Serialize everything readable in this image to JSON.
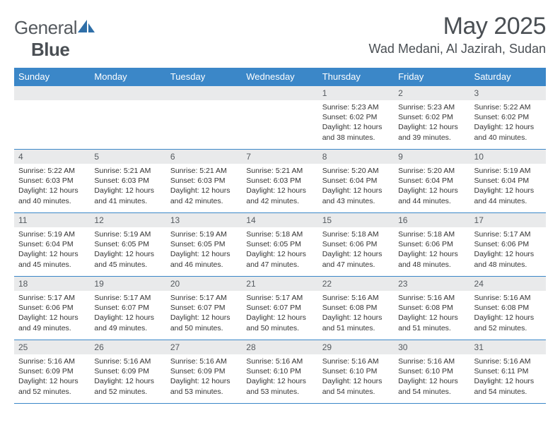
{
  "brand": {
    "part1": "General",
    "part2": "Blue"
  },
  "title": "May 2025",
  "location": "Wad Medani, Al Jazirah, Sudan",
  "colors": {
    "header_bg": "#3b87c8",
    "header_text": "#ffffff",
    "daynum_bg": "#e9eaeb",
    "rule": "#3b87c8",
    "body_text": "#333333",
    "title_text": "#4a4f54",
    "background": "#ffffff"
  },
  "typography": {
    "month_title_fontsize_pt": 26,
    "location_fontsize_pt": 13,
    "dayheader_fontsize_pt": 10,
    "daynum_fontsize_pt": 9,
    "body_fontsize_pt": 8
  },
  "day_headers": [
    "Sunday",
    "Monday",
    "Tuesday",
    "Wednesday",
    "Thursday",
    "Friday",
    "Saturday"
  ],
  "weeks": [
    [
      {
        "num": "",
        "sunrise": "",
        "sunset": "",
        "daylight": ""
      },
      {
        "num": "",
        "sunrise": "",
        "sunset": "",
        "daylight": ""
      },
      {
        "num": "",
        "sunrise": "",
        "sunset": "",
        "daylight": ""
      },
      {
        "num": "",
        "sunrise": "",
        "sunset": "",
        "daylight": ""
      },
      {
        "num": "1",
        "sunrise": "Sunrise: 5:23 AM",
        "sunset": "Sunset: 6:02 PM",
        "daylight": "Daylight: 12 hours and 38 minutes."
      },
      {
        "num": "2",
        "sunrise": "Sunrise: 5:23 AM",
        "sunset": "Sunset: 6:02 PM",
        "daylight": "Daylight: 12 hours and 39 minutes."
      },
      {
        "num": "3",
        "sunrise": "Sunrise: 5:22 AM",
        "sunset": "Sunset: 6:02 PM",
        "daylight": "Daylight: 12 hours and 40 minutes."
      }
    ],
    [
      {
        "num": "4",
        "sunrise": "Sunrise: 5:22 AM",
        "sunset": "Sunset: 6:03 PM",
        "daylight": "Daylight: 12 hours and 40 minutes."
      },
      {
        "num": "5",
        "sunrise": "Sunrise: 5:21 AM",
        "sunset": "Sunset: 6:03 PM",
        "daylight": "Daylight: 12 hours and 41 minutes."
      },
      {
        "num": "6",
        "sunrise": "Sunrise: 5:21 AM",
        "sunset": "Sunset: 6:03 PM",
        "daylight": "Daylight: 12 hours and 42 minutes."
      },
      {
        "num": "7",
        "sunrise": "Sunrise: 5:21 AM",
        "sunset": "Sunset: 6:03 PM",
        "daylight": "Daylight: 12 hours and 42 minutes."
      },
      {
        "num": "8",
        "sunrise": "Sunrise: 5:20 AM",
        "sunset": "Sunset: 6:04 PM",
        "daylight": "Daylight: 12 hours and 43 minutes."
      },
      {
        "num": "9",
        "sunrise": "Sunrise: 5:20 AM",
        "sunset": "Sunset: 6:04 PM",
        "daylight": "Daylight: 12 hours and 44 minutes."
      },
      {
        "num": "10",
        "sunrise": "Sunrise: 5:19 AM",
        "sunset": "Sunset: 6:04 PM",
        "daylight": "Daylight: 12 hours and 44 minutes."
      }
    ],
    [
      {
        "num": "11",
        "sunrise": "Sunrise: 5:19 AM",
        "sunset": "Sunset: 6:04 PM",
        "daylight": "Daylight: 12 hours and 45 minutes."
      },
      {
        "num": "12",
        "sunrise": "Sunrise: 5:19 AM",
        "sunset": "Sunset: 6:05 PM",
        "daylight": "Daylight: 12 hours and 45 minutes."
      },
      {
        "num": "13",
        "sunrise": "Sunrise: 5:19 AM",
        "sunset": "Sunset: 6:05 PM",
        "daylight": "Daylight: 12 hours and 46 minutes."
      },
      {
        "num": "14",
        "sunrise": "Sunrise: 5:18 AM",
        "sunset": "Sunset: 6:05 PM",
        "daylight": "Daylight: 12 hours and 47 minutes."
      },
      {
        "num": "15",
        "sunrise": "Sunrise: 5:18 AM",
        "sunset": "Sunset: 6:06 PM",
        "daylight": "Daylight: 12 hours and 47 minutes."
      },
      {
        "num": "16",
        "sunrise": "Sunrise: 5:18 AM",
        "sunset": "Sunset: 6:06 PM",
        "daylight": "Daylight: 12 hours and 48 minutes."
      },
      {
        "num": "17",
        "sunrise": "Sunrise: 5:17 AM",
        "sunset": "Sunset: 6:06 PM",
        "daylight": "Daylight: 12 hours and 48 minutes."
      }
    ],
    [
      {
        "num": "18",
        "sunrise": "Sunrise: 5:17 AM",
        "sunset": "Sunset: 6:06 PM",
        "daylight": "Daylight: 12 hours and 49 minutes."
      },
      {
        "num": "19",
        "sunrise": "Sunrise: 5:17 AM",
        "sunset": "Sunset: 6:07 PM",
        "daylight": "Daylight: 12 hours and 49 minutes."
      },
      {
        "num": "20",
        "sunrise": "Sunrise: 5:17 AM",
        "sunset": "Sunset: 6:07 PM",
        "daylight": "Daylight: 12 hours and 50 minutes."
      },
      {
        "num": "21",
        "sunrise": "Sunrise: 5:17 AM",
        "sunset": "Sunset: 6:07 PM",
        "daylight": "Daylight: 12 hours and 50 minutes."
      },
      {
        "num": "22",
        "sunrise": "Sunrise: 5:16 AM",
        "sunset": "Sunset: 6:08 PM",
        "daylight": "Daylight: 12 hours and 51 minutes."
      },
      {
        "num": "23",
        "sunrise": "Sunrise: 5:16 AM",
        "sunset": "Sunset: 6:08 PM",
        "daylight": "Daylight: 12 hours and 51 minutes."
      },
      {
        "num": "24",
        "sunrise": "Sunrise: 5:16 AM",
        "sunset": "Sunset: 6:08 PM",
        "daylight": "Daylight: 12 hours and 52 minutes."
      }
    ],
    [
      {
        "num": "25",
        "sunrise": "Sunrise: 5:16 AM",
        "sunset": "Sunset: 6:09 PM",
        "daylight": "Daylight: 12 hours and 52 minutes."
      },
      {
        "num": "26",
        "sunrise": "Sunrise: 5:16 AM",
        "sunset": "Sunset: 6:09 PM",
        "daylight": "Daylight: 12 hours and 52 minutes."
      },
      {
        "num": "27",
        "sunrise": "Sunrise: 5:16 AM",
        "sunset": "Sunset: 6:09 PM",
        "daylight": "Daylight: 12 hours and 53 minutes."
      },
      {
        "num": "28",
        "sunrise": "Sunrise: 5:16 AM",
        "sunset": "Sunset: 6:10 PM",
        "daylight": "Daylight: 12 hours and 53 minutes."
      },
      {
        "num": "29",
        "sunrise": "Sunrise: 5:16 AM",
        "sunset": "Sunset: 6:10 PM",
        "daylight": "Daylight: 12 hours and 54 minutes."
      },
      {
        "num": "30",
        "sunrise": "Sunrise: 5:16 AM",
        "sunset": "Sunset: 6:10 PM",
        "daylight": "Daylight: 12 hours and 54 minutes."
      },
      {
        "num": "31",
        "sunrise": "Sunrise: 5:16 AM",
        "sunset": "Sunset: 6:11 PM",
        "daylight": "Daylight: 12 hours and 54 minutes."
      }
    ]
  ]
}
